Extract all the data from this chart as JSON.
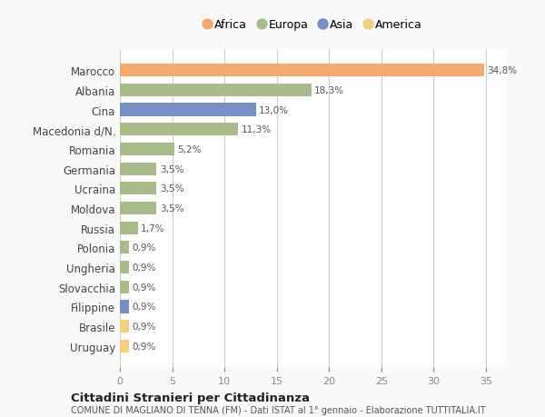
{
  "countries": [
    "Marocco",
    "Albania",
    "Cina",
    "Macedonia d/N.",
    "Romania",
    "Germania",
    "Ucraina",
    "Moldova",
    "Russia",
    "Polonia",
    "Ungheria",
    "Slovacchia",
    "Filippine",
    "Brasile",
    "Uruguay"
  ],
  "values": [
    34.8,
    18.3,
    13.0,
    11.3,
    5.2,
    3.5,
    3.5,
    3.5,
    1.7,
    0.9,
    0.9,
    0.9,
    0.9,
    0.9,
    0.9
  ],
  "labels": [
    "34,8%",
    "18,3%",
    "13,0%",
    "11,3%",
    "5,2%",
    "3,5%",
    "3,5%",
    "3,5%",
    "1,7%",
    "0,9%",
    "0,9%",
    "0,9%",
    "0,9%",
    "0,9%",
    "0,9%"
  ],
  "continents": [
    "Africa",
    "Europa",
    "Asia",
    "Europa",
    "Europa",
    "Europa",
    "Europa",
    "Europa",
    "Europa",
    "Europa",
    "Europa",
    "Europa",
    "Asia",
    "America",
    "America"
  ],
  "colors": {
    "Africa": "#F4A96D",
    "Europa": "#A8BC8A",
    "Asia": "#7490C4",
    "America": "#F5D07A"
  },
  "legend_order": [
    "Africa",
    "Europa",
    "Asia",
    "America"
  ],
  "title1": "Cittadini Stranieri per Cittadinanza",
  "title2": "COMUNE DI MAGLIANO DI TENNA (FM) - Dati ISTAT al 1° gennaio - Elaborazione TUTTITALIA.IT",
  "xlim": [
    0,
    37
  ],
  "xticks": [
    0,
    5,
    10,
    15,
    20,
    25,
    30,
    35
  ],
  "background_color": "#f9f9f9",
  "bar_background": "#ffffff"
}
